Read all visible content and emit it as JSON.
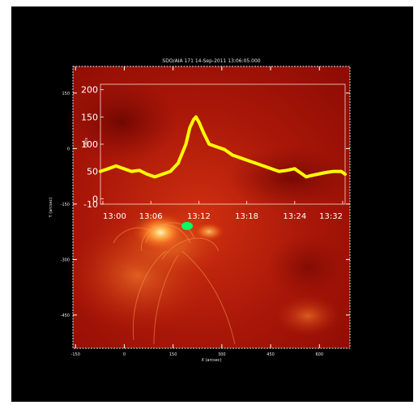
{
  "title": "SDO/AIA 171 14-Sep-2011 13:06:05.000",
  "chart_data": [
    {
      "type": "heatmap",
      "title": "SDO/AIA 171 14-Sep-2011 13:06:05.000",
      "xlabel": "X (arcsec)",
      "ylabel": "Y (arcsec)",
      "x_ticks": [
        -150,
        0,
        150,
        300,
        450,
        600
      ],
      "y_ticks": [
        -450,
        -300,
        -150,
        0,
        150
      ],
      "xlim": [
        -158,
        694
      ],
      "ylim": [
        -540,
        222
      ],
      "colormap": "red-temperature"
    },
    {
      "type": "line",
      "ylabel": "DN/s",
      "ylim": [
        -10,
        210
      ],
      "y_ticks": [
        -10,
        0,
        50,
        100,
        150,
        200
      ],
      "x_ticks": [
        "13:00",
        "13:06",
        "13:12",
        "13:18",
        "13:24",
        "13:32"
      ],
      "xlim": [
        0,
        31.5
      ],
      "series": [
        {
          "color": "#ffff00",
          "x": [
            0,
            1,
            2,
            3,
            4,
            5,
            6,
            7,
            8,
            9,
            10,
            11,
            11.5,
            12,
            12.3,
            12.7,
            13.3,
            14,
            15,
            16,
            17,
            18,
            19,
            20,
            21,
            22,
            23,
            24,
            25,
            26,
            26.5,
            27,
            28,
            29,
            30,
            31,
            31.5
          ],
          "y": [
            50,
            55,
            60,
            55,
            50,
            52,
            45,
            40,
            45,
            50,
            65,
            100,
            130,
            145,
            150,
            140,
            120,
            100,
            95,
            90,
            80,
            75,
            70,
            65,
            60,
            55,
            50,
            52,
            55,
            45,
            40,
            42,
            45,
            48,
            50,
            50,
            45
          ]
        }
      ]
    }
  ],
  "colors": {
    "background": "#000000",
    "series": "#ffff00",
    "marker": "#00ff66"
  }
}
